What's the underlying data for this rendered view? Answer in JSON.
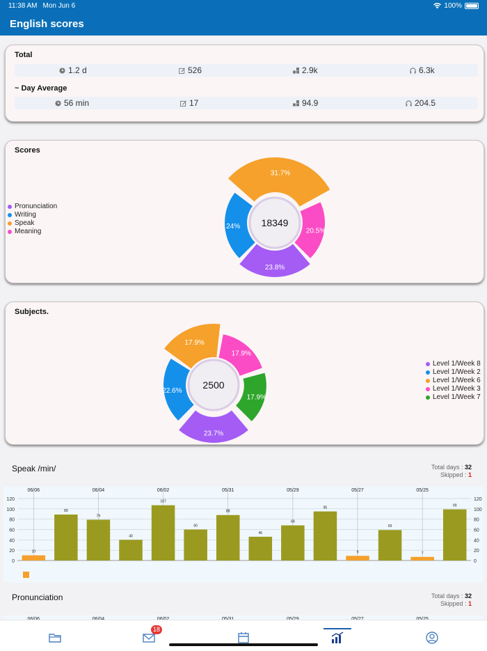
{
  "status": {
    "time": "11:38 AM",
    "date": "Mon Jun 6",
    "battery": "100%"
  },
  "nav": {
    "title": "English scores"
  },
  "totals": {
    "total_label": "Total",
    "total": {
      "time": "1.2 d",
      "writing": "526",
      "points": "2.9k",
      "listening": "6.3k"
    },
    "avg_label": "~ Day Average",
    "avg": {
      "time": "56 min",
      "writing": "17",
      "points": "94.9",
      "listening": "204.5"
    }
  },
  "scores": {
    "title": "Scores",
    "center": "18349",
    "legend": [
      {
        "label": "Pronunciation",
        "color": "#a45cf5"
      },
      {
        "label": "Writing",
        "color": "#1590ea"
      },
      {
        "label": "Speak",
        "color": "#f5a12b"
      },
      {
        "label": "Meaning",
        "color": "#fb4bc5"
      }
    ]
  },
  "subjects": {
    "title": "Subjects.",
    "center": "2500",
    "legend": [
      {
        "label": "Level 1/Week 8",
        "color": "#a45cf5"
      },
      {
        "label": "Level 1/Week 2",
        "color": "#1590ea"
      },
      {
        "label": "Level 1/Week 6",
        "color": "#f5a12b"
      },
      {
        "label": "Level 1/Week 3",
        "color": "#fb4bc5"
      },
      {
        "label": "Level 1/Week 7",
        "color": "#2ea52b"
      }
    ]
  },
  "speak": {
    "title": "Speak /min/",
    "total_days_label": "Total days : ",
    "total_days": "32",
    "skipped_label": "Skipped : ",
    "skipped": "1"
  },
  "pronunciation": {
    "title": "Pronunciation",
    "total_days_label": "Total days : ",
    "total_days": "32",
    "skipped_label": "Skipped : ",
    "skipped": "1",
    "dates": [
      "06/06",
      "06/04",
      "06/02",
      "05/31",
      "05/29",
      "05/27",
      "05/25"
    ]
  },
  "tabs": {
    "mail_badge": "18"
  },
  "chart_data": [
    {
      "type": "pie",
      "title": "Scores",
      "center_total": 18349,
      "categories": [
        "Pronunciation",
        "Writing",
        "Speak",
        "Meaning"
      ],
      "values": [
        23.8,
        24,
        31.7,
        20.5
      ],
      "colors": [
        "#a45cf5",
        "#1590ea",
        "#f5a12b",
        "#fb4bc5"
      ],
      "labels": [
        "23.8%",
        "24%",
        "31.7%",
        "20.5%"
      ]
    },
    {
      "type": "pie",
      "title": "Subjects.",
      "center_total": 2500,
      "categories": [
        "Level 1/Week 8",
        "Level 1/Week 2",
        "Level 1/Week 6",
        "Level 1/Week 3",
        "Level 1/Week 7"
      ],
      "values": [
        23.7,
        22.6,
        17.9,
        17.9,
        17.9
      ],
      "colors": [
        "#a45cf5",
        "#1590ea",
        "#f5a12b",
        "#fb4bc5",
        "#2ea52b"
      ],
      "labels": [
        "23.7%",
        "22.6%",
        "17.9%",
        "17.9%",
        "17.9%"
      ]
    },
    {
      "type": "bar",
      "title": "Speak /min/",
      "x_top_labels": [
        "06/06",
        "06/04",
        "06/02",
        "05/31",
        "05/29",
        "05/27",
        "05/25"
      ],
      "values": [
        10,
        89,
        79,
        40,
        107,
        60,
        88,
        46,
        68,
        95,
        9,
        59,
        7,
        99
      ],
      "value_labels": [
        "10",
        "89",
        "79",
        "40",
        "107",
        "60",
        "88",
        "46",
        "68",
        "95",
        "9",
        "59",
        "7",
        "99"
      ],
      "colors": [
        "#f5a02c",
        "#9a9a20",
        "#9a9a20",
        "#9a9a20",
        "#9a9a20",
        "#9a9a20",
        "#9a9a20",
        "#9a9a20",
        "#9a9a20",
        "#9a9a20",
        "#f5a02c",
        "#9a9a20",
        "#f5a02c",
        "#9a9a20"
      ],
      "yticks": [
        "120",
        "100",
        "80",
        "60",
        "40",
        "20",
        "0"
      ],
      "ylim": [
        0,
        120
      ],
      "grid": true
    }
  ]
}
